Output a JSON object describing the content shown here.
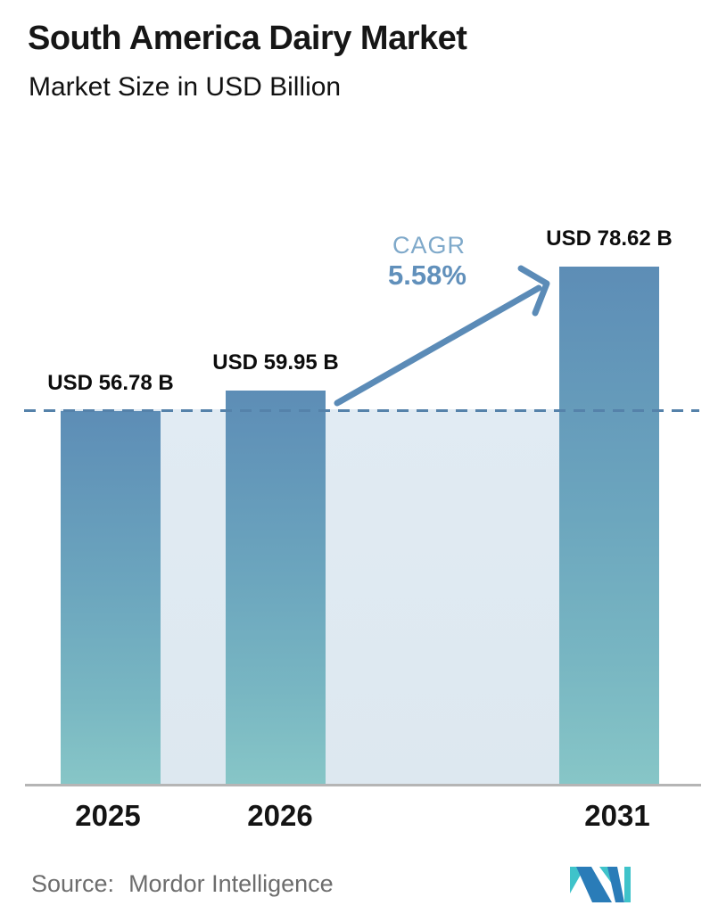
{
  "header": {
    "title": "South America Dairy Market",
    "subtitle": "Market Size in USD Billion"
  },
  "chart_data": {
    "type": "bar",
    "title": "South America Dairy Market",
    "subtitle": "Market Size in USD Billion",
    "ylabel": "Market Size in USD Billion",
    "categories": [
      "2025",
      "2026",
      "2031"
    ],
    "values": [
      56.78,
      59.95,
      78.62
    ],
    "value_labels": [
      "USD 56.78 B",
      "USD 59.95 B",
      "USD 78.62 B"
    ],
    "annotation": {
      "label": "CAGR",
      "value": "5.58%"
    },
    "baseline_value": 56.78,
    "baseline_style": "dashed",
    "grid": "off",
    "legend": "none",
    "ylim": [
      0,
      119
    ],
    "colors": {
      "bar_top": "#5d8db6",
      "bar_bottom": "#87c6c7",
      "baseline_band": "#dee9f1",
      "dashed_line": "#5582aa",
      "arrow": "#5b8bb7",
      "cagr_label": "#7fa9ca",
      "cagr_value": "#6190bb",
      "axis_line": "#b5b5b5",
      "source_text": "#6d6d6d",
      "logo_teal": "#3fc3ca",
      "logo_blue": "#2a7cb8"
    }
  },
  "footer": {
    "source_label": "Source:",
    "source_value": "Mordor Intelligence",
    "logo": "mordor-intelligence-logo"
  }
}
